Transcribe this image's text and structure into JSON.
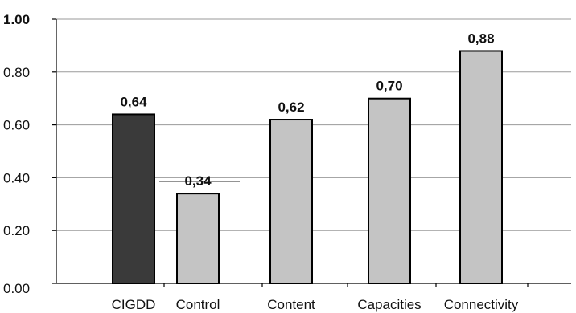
{
  "chart_data": {
    "type": "bar",
    "categories": [
      "CIGDD",
      "Control",
      "Content",
      "Capacities",
      "Connectivity"
    ],
    "values": [
      0.64,
      0.34,
      0.62,
      0.7,
      0.88
    ],
    "data_labels": [
      "0,64",
      "0,34",
      "0,62",
      "0,70",
      "0,88"
    ],
    "y_ticks": [
      0.0,
      0.2,
      0.4,
      0.6,
      0.8,
      1.0
    ],
    "y_tick_labels": [
      "0.00",
      "0.20",
      "0.40",
      "0.60",
      "0.80",
      "1.00"
    ],
    "ylim": [
      0,
      1
    ],
    "title": "",
    "xlabel": "",
    "ylabel": "",
    "grid": true,
    "legend": "none",
    "colors": {
      "highlight_bar": "#3a3a3a",
      "bar": "#c4c4c4",
      "grid": "#9a9a9a"
    }
  }
}
